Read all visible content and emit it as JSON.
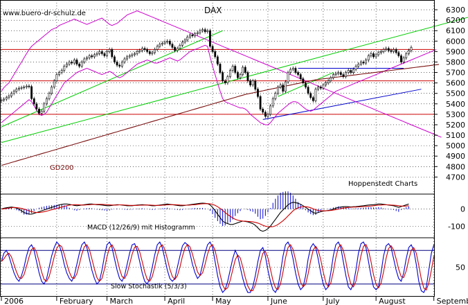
{
  "chart_data": {
    "type": "line",
    "watermark": "www.buero-dr-schulz.de",
    "title": "DAX",
    "source_label": "Hoppenstedt Charts",
    "colors": {
      "background": "#ffffff",
      "grid": "#000000",
      "candles": "#000000",
      "bollinger": "#cc00cc",
      "gd200": "#7a1010",
      "green_trend": "#00cc00",
      "blue_trend": "#0000cc",
      "red_levels": "#cc0000",
      "macd_line": "#000000",
      "macd_signal": "#cc0000",
      "histogram": "#0000cc",
      "stoch_k": "#0000cc",
      "stoch_d": "#cc0000"
    },
    "x_axis": {
      "labels": [
        "2006",
        "February",
        "March",
        "April",
        "May",
        "June",
        "July",
        "August",
        "September"
      ],
      "month_starts": [
        0,
        22,
        42,
        65,
        84,
        106,
        128,
        149,
        172
      ]
    },
    "price_panel": {
      "ylim": [
        4550,
        6380
      ],
      "yticks": [
        4700,
        4800,
        4900,
        5000,
        5100,
        5200,
        5300,
        5400,
        5500,
        5600,
        5700,
        5800,
        5900,
        6000,
        6100,
        6200,
        6300
      ],
      "close": [
        5437,
        5445,
        5460,
        5475,
        5500,
        5520,
        5540,
        5550,
        5555,
        5560,
        5570,
        5565,
        5450,
        5400,
        5350,
        5310,
        5330,
        5400,
        5450,
        5500,
        5560,
        5620,
        5680,
        5700,
        5720,
        5760,
        5780,
        5800,
        5790,
        5820,
        5780,
        5760,
        5800,
        5830,
        5840,
        5860,
        5850,
        5870,
        5880,
        5900,
        5880,
        5860,
        5900,
        5920,
        5850,
        5800,
        5770,
        5760,
        5800,
        5830,
        5850,
        5860,
        5870,
        5880,
        5900,
        5910,
        5930,
        5920,
        5900,
        5880,
        5890,
        5920,
        5950,
        5970,
        5980,
        5990,
        6000,
        5970,
        5940,
        5910,
        5930,
        5960,
        5990,
        6010,
        6040,
        6060,
        6050,
        6070,
        6080,
        6100,
        6110,
        6090,
        6100,
        5950,
        5900,
        5850,
        5780,
        5700,
        5620,
        5600,
        5660,
        5720,
        5760,
        5700,
        5650,
        5680,
        5750,
        5700,
        5620,
        5580,
        5620,
        5540,
        5470,
        5350,
        5320,
        5280,
        5300,
        5380,
        5450,
        5500,
        5560,
        5580,
        5520,
        5610,
        5700,
        5730,
        5740,
        5700,
        5680,
        5640,
        5600,
        5560,
        5500,
        5460,
        5430,
        5540,
        5560,
        5550,
        5580,
        5600,
        5620,
        5650,
        5680,
        5690,
        5700,
        5680,
        5660,
        5700,
        5720,
        5700,
        5730,
        5760,
        5780,
        5800,
        5790,
        5820,
        5860,
        5880,
        5850,
        5870,
        5890,
        5900,
        5920,
        5930,
        5910,
        5900,
        5920,
        5890,
        5860,
        5800,
        5840,
        5880,
        5910,
        5940
      ],
      "gd200": [
        4811,
        4818,
        4825,
        4832,
        4839,
        4846,
        4853,
        4860,
        4867,
        4874,
        4881,
        4888,
        4895,
        4902,
        4909,
        4916,
        4923,
        4930,
        4937,
        4944,
        4951,
        4958,
        4965,
        4972,
        4979,
        4986,
        4993,
        5000,
        5007,
        5014,
        5021,
        5028,
        5035,
        5042,
        5049,
        5056,
        5063,
        5070,
        5077,
        5084,
        5091,
        5098,
        5105,
        5112,
        5119,
        5126,
        5133,
        5140,
        5147,
        5154,
        5161,
        5168,
        5175,
        5182,
        5189,
        5196,
        5203,
        5210,
        5217,
        5224,
        5231,
        5238,
        5245,
        5252,
        5259,
        5266,
        5273,
        5280,
        5287,
        5294,
        5301,
        5308,
        5315,
        5322,
        5329,
        5336,
        5343,
        5350,
        5357,
        5364,
        5371,
        5378,
        5385,
        5392,
        5399,
        5406,
        5413,
        5420,
        5427,
        5434,
        5441,
        5448,
        5455,
        5462,
        5469,
        5476,
        5483,
        5490,
        5495,
        5500,
        5505,
        5510,
        5515,
        5520,
        5525,
        5530,
        5535,
        5540,
        5545,
        5550,
        5555,
        5560,
        5565,
        5570,
        5575,
        5580,
        5585,
        5590,
        5595,
        5600,
        5605,
        5610,
        5615,
        5620,
        5625,
        5630,
        5633,
        5636,
        5639,
        5642,
        5645,
        5648,
        5651,
        5654,
        5657,
        5660,
        5663,
        5666,
        5669,
        5672,
        5675,
        5678,
        5681,
        5684,
        5687,
        5690,
        5693,
        5696,
        5699,
        5702,
        5705,
        5708,
        5711,
        5714,
        5717,
        5720,
        5723,
        5726,
        5729,
        5732,
        5735,
        5738,
        5741,
        5744,
        5747,
        5750,
        5753,
        5756,
        5759,
        5762,
        5765,
        5768,
        5771,
        5774,
        5777
      ],
      "bollinger_upper": [
        5520,
        5555,
        5580,
        5600,
        5640,
        5680,
        5720,
        5760,
        5800,
        5840,
        5880,
        5920,
        5950,
        5970,
        5990,
        6010,
        6030,
        6050,
        6070,
        6090,
        6110,
        6120,
        6130,
        6150,
        6160,
        6170,
        6180,
        6190,
        6200,
        6210,
        6200,
        6190,
        6180,
        6170,
        6160,
        6170,
        6180,
        6190,
        6200,
        6210,
        6220,
        6200,
        6180,
        6160,
        6150,
        6160,
        6170,
        6190,
        6210,
        6230,
        6250,
        6260,
        6270,
        6280,
        6290,
        6280,
        6270,
        6260,
        6250,
        6240,
        6230,
        6220,
        6210,
        6200,
        6190,
        6180,
        6170,
        6160,
        6150,
        6140,
        6130,
        6120,
        6110,
        6100,
        6090,
        6080,
        6070,
        6060,
        6050,
        6040,
        6030,
        6020,
        6010,
        6000,
        5990,
        5980,
        5970,
        5960,
        5950,
        5940,
        5930,
        5920,
        5910,
        5900,
        5890,
        5880,
        5870,
        5860,
        5850,
        5840,
        5830,
        5820,
        5810,
        5800,
        5790,
        5780,
        5770,
        5760,
        5750,
        5740,
        5730,
        5720,
        5710,
        5700,
        5690,
        5680,
        5670,
        5660,
        5650,
        5640,
        5630,
        5620,
        5610,
        5600,
        5590,
        5580,
        5570,
        5560,
        5550,
        5540,
        5530,
        5520,
        5510,
        5500,
        5490,
        5480,
        5470,
        5460,
        5450,
        5440,
        5430,
        5420,
        5410,
        5400,
        5390,
        5380,
        5370,
        5360,
        5350,
        5340,
        5330,
        5320,
        5310,
        5300,
        5290,
        5280,
        5270,
        5260,
        5250,
        5240,
        5230,
        5220,
        5210,
        5200,
        5190,
        5180,
        5170,
        5160,
        5150,
        5140,
        5130,
        5120,
        5110,
        5100,
        5090,
        5080
      ],
      "bollinger_lower": [
        5220,
        5240,
        5260,
        5280,
        5300,
        5320,
        5340,
        5360,
        5380,
        5400,
        5420,
        5440,
        5420,
        5380,
        5340,
        5300,
        5290,
        5300,
        5320,
        5360,
        5400,
        5440,
        5480,
        5520,
        5560,
        5600,
        5620,
        5640,
        5660,
        5680,
        5700,
        5710,
        5720,
        5730,
        5740,
        5730,
        5720,
        5710,
        5700,
        5690,
        5680,
        5690,
        5700,
        5710,
        5700,
        5680,
        5660,
        5650,
        5660,
        5680,
        5700,
        5720,
        5740,
        5760,
        5780,
        5790,
        5800,
        5810,
        5820,
        5810,
        5800,
        5790,
        5790,
        5800,
        5810,
        5820,
        5830,
        5840,
        5830,
        5820,
        5810,
        5820,
        5840,
        5860,
        5880,
        5900,
        5910,
        5920,
        5930,
        5940,
        5950,
        5960,
        5950,
        5850,
        5760,
        5680,
        5600,
        5520,
        5450,
        5420,
        5410,
        5400,
        5390,
        5380,
        5370,
        5360,
        5360,
        5350,
        5330,
        5300,
        5280,
        5260,
        5240,
        5220,
        5210,
        5200,
        5200,
        5220,
        5250,
        5280,
        5310,
        5330,
        5350,
        5370,
        5390,
        5410,
        5420,
        5420,
        5410,
        5390,
        5370,
        5350,
        5340,
        5330,
        5340,
        5360,
        5380,
        5400,
        5420,
        5440,
        5460,
        5480,
        5500,
        5520,
        5530,
        5540,
        5550,
        5560,
        5570,
        5580,
        5590,
        5600,
        5610,
        5620,
        5630,
        5640,
        5650,
        5660,
        5670,
        5680,
        5690,
        5700,
        5710,
        5720,
        5730,
        5740,
        5750,
        5760,
        5770,
        5780,
        5790,
        5800,
        5810,
        5820,
        5830,
        5840,
        5850,
        5860,
        5870,
        5880,
        5890,
        5900,
        5910,
        5920
      ]
    },
    "macd_panel": {
      "yticks": [
        0,
        -100
      ],
      "ylim": [
        -160,
        80
      ],
      "label": "MACD (12/26/9) mit Histogramm",
      "macd": [
        0,
        5,
        8,
        10,
        12,
        10,
        5,
        0,
        -10,
        -20,
        -25,
        -30,
        -30,
        -25,
        -20,
        -15,
        -10,
        -5,
        0,
        5,
        10,
        15,
        20,
        25,
        28,
        30,
        30,
        28,
        25,
        22,
        20,
        22,
        24,
        26,
        28,
        30,
        30,
        28,
        26,
        25,
        24,
        22,
        20,
        20,
        22,
        24,
        26,
        25,
        24,
        22,
        20,
        20,
        20,
        22,
        24,
        25,
        26,
        25,
        24,
        22,
        20,
        20,
        22,
        24,
        26,
        28,
        30,
        28,
        26,
        24,
        22,
        20,
        20,
        22,
        24,
        26,
        28,
        30,
        32,
        34,
        35,
        34,
        32,
        25,
        10,
        -10,
        -30,
        -50,
        -70,
        -80,
        -85,
        -90,
        -90,
        -85,
        -80,
        -75,
        -70,
        -72,
        -75,
        -80,
        -85,
        -95,
        -110,
        -125,
        -130,
        -125,
        -115,
        -100,
        -80,
        -60,
        -40,
        -20,
        -5,
        10,
        25,
        35,
        40,
        38,
        34,
        28,
        20,
        10,
        0,
        -10,
        -20,
        -25,
        -20,
        -15,
        -12,
        -10,
        -8,
        -5,
        0,
        5,
        10,
        12,
        14,
        15,
        14,
        13,
        14,
        15,
        16,
        18,
        20,
        22,
        24,
        25,
        26,
        28,
        30,
        30,
        28,
        26,
        24,
        22,
        20,
        15,
        10,
        15,
        20,
        25,
        30
      ],
      "signal": [
        0,
        2,
        4,
        6,
        8,
        10,
        9,
        7,
        4,
        0,
        -5,
        -10,
        -15,
        -18,
        -20,
        -20,
        -18,
        -15,
        -12,
        -8,
        -4,
        0,
        4,
        8,
        12,
        16,
        20,
        23,
        25,
        26,
        26,
        25,
        24,
        24,
        25,
        26,
        27,
        28,
        28,
        28,
        28,
        27,
        26,
        25,
        24,
        24,
        24,
        25,
        25,
        24,
        23,
        22,
        22,
        22,
        22,
        23,
        23,
        24,
        24,
        24,
        23,
        22,
        22,
        22,
        23,
        24,
        25,
        26,
        26,
        26,
        25,
        24,
        23,
        23,
        23,
        24,
        25,
        26,
        28,
        30,
        31,
        32,
        32,
        31,
        28,
        22,
        14,
        4,
        -8,
        -20,
        -32,
        -42,
        -52,
        -60,
        -65,
        -68,
        -70,
        -71,
        -72,
        -73,
        -75,
        -78,
        -82,
        -88,
        -95,
        -100,
        -103,
        -104,
        -103,
        -98,
        -90,
        -80,
        -68,
        -55,
        -40,
        -25,
        -10,
        0,
        8,
        12,
        14,
        14,
        12,
        8,
        2,
        -4,
        -8,
        -10,
        -10,
        -10,
        -9,
        -8,
        -6,
        -3,
        0,
        3,
        6,
        8,
        10,
        11,
        12,
        12,
        13,
        14,
        15,
        16,
        17,
        18,
        20,
        22,
        23,
        24,
        25,
        25,
        25,
        24,
        23,
        22,
        20,
        18,
        17,
        18,
        20
      ]
    },
    "stoch_panel": {
      "yticks": [
        50
      ],
      "ylim": [
        0,
        100
      ],
      "upper_line": 80,
      "lower_line": 20,
      "label": "Slow Stochastik (5/3/3)",
      "k": [
        60,
        75,
        80,
        70,
        55,
        40,
        30,
        25,
        35,
        50,
        70,
        85,
        90,
        80,
        60,
        40,
        25,
        20,
        30,
        50,
        70,
        85,
        95,
        90,
        75,
        55,
        40,
        30,
        25,
        35,
        55,
        75,
        90,
        95,
        85,
        65,
        45,
        30,
        20,
        25,
        45,
        70,
        90,
        95,
        85,
        65,
        45,
        30,
        25,
        35,
        55,
        75,
        90,
        92,
        80,
        60,
        40,
        25,
        20,
        30,
        50,
        72,
        90,
        95,
        85,
        65,
        45,
        30,
        25,
        30,
        50,
        70,
        88,
        94,
        90,
        75,
        55,
        40,
        30,
        35,
        55,
        75,
        90,
        95,
        85,
        60,
        35,
        15,
        5,
        10,
        25,
        45,
        65,
        80,
        70,
        50,
        30,
        15,
        5,
        5,
        15,
        35,
        60,
        80,
        85,
        70,
        45,
        25,
        10,
        5,
        15,
        40,
        70,
        90,
        95,
        85,
        65,
        40,
        20,
        10,
        15,
        35,
        65,
        85,
        92,
        85,
        65,
        40,
        20,
        10,
        15,
        40,
        70,
        90,
        95,
        85,
        60,
        35,
        15,
        10,
        20,
        45,
        75,
        92,
        95,
        85,
        60,
        35,
        15,
        10,
        15,
        40,
        70,
        88,
        92,
        85,
        65,
        45,
        30,
        25,
        40,
        65,
        85,
        90,
        80,
        55,
        25,
        8,
        5,
        15,
        45,
        75,
        90
      ]
    }
  }
}
